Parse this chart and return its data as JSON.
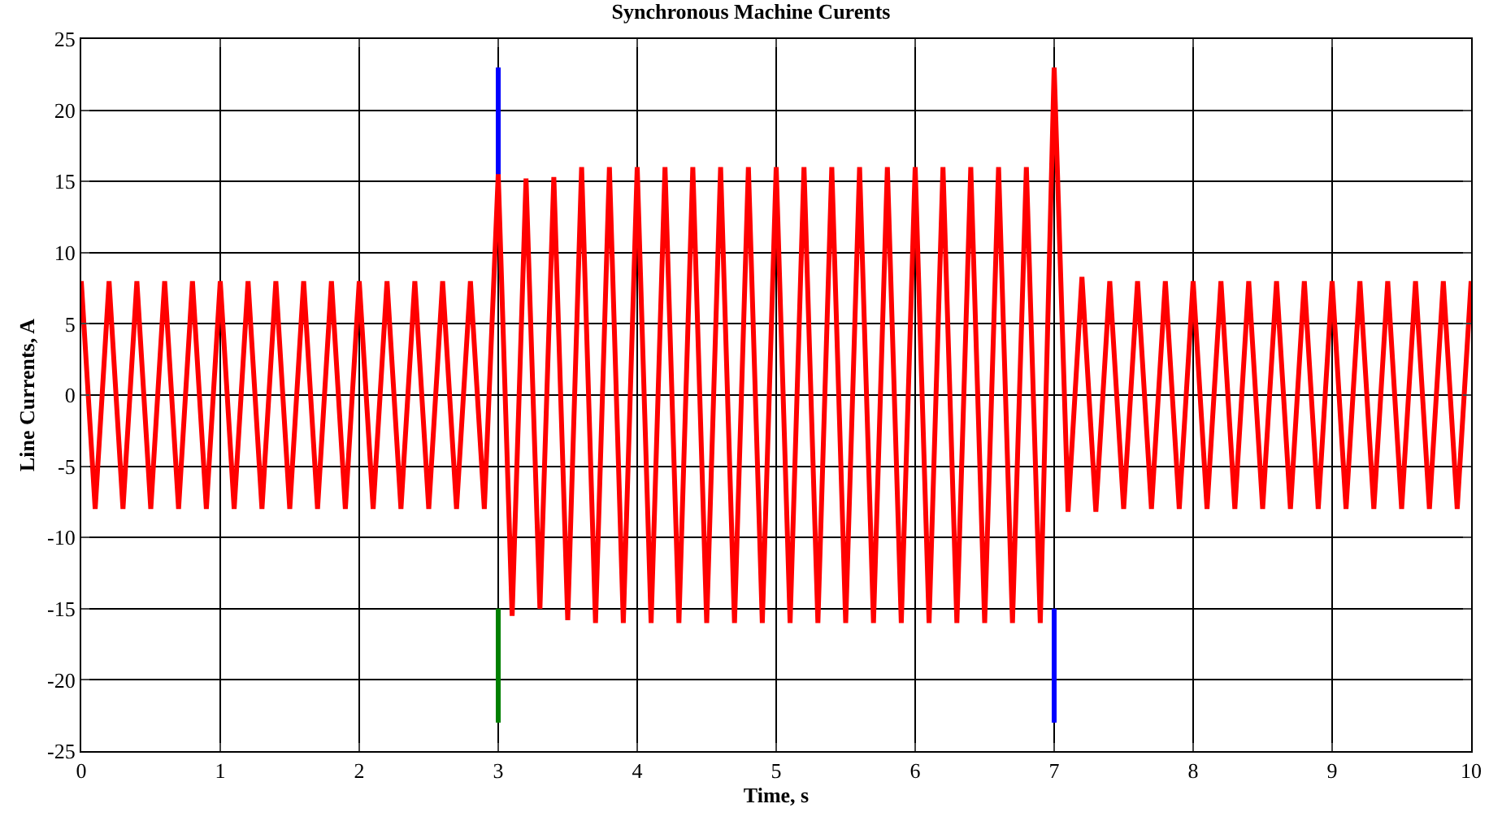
{
  "chart_data": {
    "type": "line",
    "title": "Synchronous Machine Curents",
    "xlabel": "Time, s",
    "ylabel": "Line Currents, A",
    "xlim": [
      0,
      10
    ],
    "xticks": [
      0,
      1,
      2,
      3,
      4,
      5,
      6,
      7,
      8,
      9,
      10
    ],
    "ylim": [
      -25,
      25
    ],
    "yticks": [
      -25,
      -20,
      -15,
      -10,
      -5,
      0,
      5,
      10,
      15,
      20,
      25
    ],
    "grid": true,
    "series": [
      {
        "color": "#0000ff",
        "x": [
          3,
          3,
          null,
          7,
          7
        ],
        "values": [
          15,
          23,
          null,
          -15,
          -23
        ]
      },
      {
        "color": "#008000",
        "x": [
          3,
          3
        ],
        "values": [
          -15,
          -23
        ]
      },
      {
        "color": "#ff0000",
        "x": [
          0,
          0.1,
          0.2,
          0.3,
          0.4,
          0.5,
          0.6,
          0.7,
          0.8,
          0.9,
          1,
          1.1,
          1.2,
          1.3,
          1.4,
          1.5,
          1.6,
          1.7,
          1.8,
          1.9,
          2,
          2.1,
          2.2,
          2.3,
          2.4,
          2.5,
          2.6,
          2.7,
          2.8,
          2.9,
          3,
          3.1,
          3.2,
          3.3,
          3.4,
          3.5,
          3.6,
          3.7,
          3.8,
          3.9,
          4,
          4.1,
          4.2,
          4.3,
          4.4,
          4.5,
          4.6,
          4.7,
          4.8,
          4.9,
          5,
          5.1,
          5.2,
          5.3,
          5.4,
          5.5,
          5.6,
          5.7,
          5.8,
          5.9,
          6,
          6.1,
          6.2,
          6.3,
          6.4,
          6.5,
          6.6,
          6.7,
          6.8,
          6.9,
          7,
          7.1,
          7.2,
          7.3,
          7.4,
          7.5,
          7.6,
          7.7,
          7.8,
          7.9,
          8,
          8.1,
          8.2,
          8.3,
          8.4,
          8.5,
          8.6,
          8.7,
          8.8,
          8.9,
          9,
          9.1,
          9.2,
          9.3,
          9.4,
          9.5,
          9.6,
          9.7,
          9.8,
          9.9,
          10
        ],
        "values": [
          8,
          -8,
          8,
          -8,
          8,
          -8,
          8,
          -8,
          8,
          -8,
          8,
          -8,
          8,
          -8,
          8,
          -8,
          8,
          -8,
          8,
          -8,
          8,
          -8,
          8,
          -8,
          8,
          -8,
          8,
          -8,
          8,
          -8,
          15.5,
          -15.5,
          15.2,
          -15,
          15.3,
          -15.8,
          16,
          -16,
          16,
          -16,
          16,
          -16,
          16,
          -16,
          16,
          -16,
          16,
          -16,
          16,
          -16,
          16,
          -16,
          16,
          -16,
          16,
          -16,
          16,
          -16,
          16,
          -16,
          16,
          -16,
          16,
          -16,
          16,
          -16,
          16,
          -16,
          16,
          -16,
          23,
          -8.2,
          8.3,
          -8.2,
          8,
          -8,
          8,
          -8,
          8,
          -8,
          8,
          -8,
          8,
          -8,
          8,
          -8,
          8,
          -8,
          8,
          -8,
          8,
          -8,
          8,
          -8,
          8,
          -8,
          8,
          -8,
          8,
          -8,
          8
        ]
      }
    ]
  }
}
